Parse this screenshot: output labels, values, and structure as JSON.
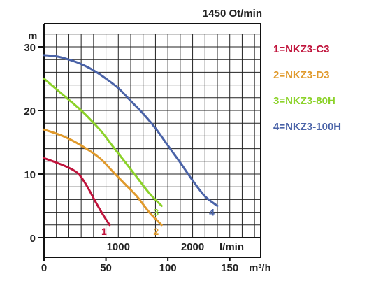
{
  "chart_data": {
    "type": "line",
    "title": "1450 Ot/min",
    "ylabel": "m",
    "x_unit_primary": "m³/h",
    "x_unit_secondary": "l/min",
    "xlim": [
      0,
      175
    ],
    "ylim": [
      -3.5,
      34
    ],
    "grid": true,
    "legend_placement": "right",
    "x_ticks": [
      {
        "value": 0,
        "label": "0"
      },
      {
        "value": 50,
        "label": "50"
      },
      {
        "value": 100,
        "label": "100"
      },
      {
        "value": 150,
        "label": "150"
      }
    ],
    "x2_ticks": [
      {
        "value": 60,
        "label": "1000"
      },
      {
        "value": 120,
        "label": "2000"
      }
    ],
    "y_ticks": [
      {
        "value": 0,
        "label": "0"
      },
      {
        "value": 10,
        "label": "10"
      },
      {
        "value": 20,
        "label": "20"
      },
      {
        "value": 30,
        "label": "30"
      }
    ],
    "series": [
      {
        "name": "1=NKZ3-C3",
        "end_label": "1",
        "color": "#c0143c",
        "x": [
          0,
          10,
          20,
          28,
          35,
          42,
          48,
          53
        ],
        "y": [
          12.5,
          11.8,
          11,
          10,
          8,
          5.5,
          3.5,
          2
        ]
      },
      {
        "name": "2=NKZ3-D3",
        "end_label": "2",
        "color": "#e09a2c",
        "x": [
          0,
          15,
          30,
          45,
          55,
          65,
          75,
          85,
          95
        ],
        "y": [
          17,
          16,
          14.5,
          12.5,
          10.5,
          8.5,
          6.5,
          4,
          2
        ]
      },
      {
        "name": "3=NKZ3-80H",
        "end_label": "3",
        "color": "#8cd22a",
        "x": [
          0,
          15,
          30,
          45,
          55,
          65,
          75,
          85,
          95
        ],
        "y": [
          25,
          22.5,
          20,
          17,
          14.5,
          12,
          9.5,
          7,
          5
        ]
      },
      {
        "name": "4=NKZ3-100H",
        "end_label": "4",
        "color": "#4a63a8",
        "x": [
          0,
          10,
          20,
          30,
          40,
          50,
          60,
          70,
          80,
          90,
          100,
          110,
          120,
          130,
          140
        ],
        "y": [
          28.7,
          28.5,
          28,
          27.3,
          26.3,
          25,
          23.5,
          21.5,
          19.5,
          17.2,
          14.5,
          11.8,
          9,
          6.5,
          5
        ]
      }
    ]
  }
}
